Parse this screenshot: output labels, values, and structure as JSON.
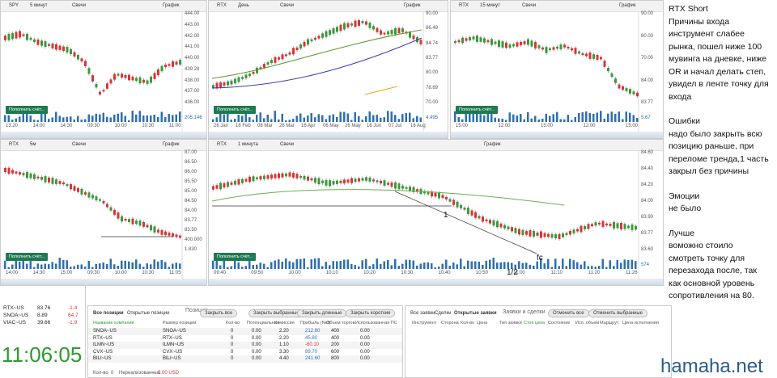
{
  "panels": [
    {
      "symbol": "SPY",
      "interval": "5 минут",
      "style": "Свечи",
      "view": "График",
      "price_labels": [
        "444.00",
        "443.00",
        "442.00",
        "441.00",
        "440.00",
        "439.28",
        "438.00",
        "437.00",
        "436.00"
      ],
      "time_labels": [
        "13:20",
        "14:00",
        "14:30",
        "09:30",
        "10:00",
        "10:30",
        "11:00"
      ],
      "button": "Пополнить счёт...",
      "volume_label": "205.146"
    },
    {
      "symbol": "RTX",
      "interval": "День",
      "style": "Свечи",
      "view": "График",
      "price_labels": [
        "90.00",
        "86.49",
        "84.74",
        "83.77",
        "80.00",
        "78.69",
        "70.00"
      ],
      "time_labels": [
        "26 Jan",
        "16 Feb",
        "08 Mar",
        "26 Mar",
        "16 Apr",
        "06 May",
        "26 May",
        "16 Jun",
        "07 Jul",
        "16 Aug"
      ],
      "button": "Пополнить счёт...",
      "volume_label": "4.495"
    },
    {
      "symbol": "RTX",
      "interval": "15 минут",
      "style": "Свечи",
      "view": "График",
      "price_labels": [
        "90.00",
        "80.00",
        "70.00",
        "84.00",
        "83.77"
      ],
      "time_labels": [
        "15:00",
        "12:00",
        "15:00",
        "12:00",
        "15:00"
      ],
      "button": "Пополнить счёт...",
      "volume_label": "5.67"
    },
    {
      "symbol": "RTX",
      "interval": "5м",
      "style": "Свечи",
      "view": "График",
      "price_labels": [
        "87.00",
        "86.50",
        "86.00",
        "85.50",
        "85.00",
        "84.50",
        "84.00",
        "83.77",
        "83.50",
        "400.000",
        "1.830"
      ],
      "time_labels": [
        "14:00",
        "14:30",
        "15:00",
        "09:30",
        "10:00",
        "10:30",
        "11:05"
      ],
      "button": "Пополнить счёт...",
      "volume_label": ""
    },
    {
      "symbol": "RTX",
      "interval": "1 минута",
      "style": "Свечи",
      "view": "График",
      "price_labels": [
        "84.60",
        "84.40",
        "84.20",
        "84.00",
        "83.90",
        "83.77",
        "83.60"
      ],
      "time_labels": [
        "09:40",
        "09:50",
        "10:00",
        "10:10",
        "10:20",
        "10:30",
        "10:40",
        "10:50",
        "11:00",
        "11:10",
        "11:20",
        "11:26"
      ],
      "button": "Пополнить счёт...",
      "volume_label": "574",
      "annotations": [
        "1",
        "1/2",
        "fc"
      ]
    }
  ],
  "notes": {
    "title": "RTX Short",
    "paragraphs": [
      [
        "Причины входа",
        "инструмент слабее",
        "рынка, пошел ниже 100",
        "мувинга на дневке, ниже",
        "OR и начал делать степ,",
        "увидел в ленте точку для",
        "входа"
      ],
      [
        "Ошибки",
        "надо было закрыть всю",
        "позицию раньше, при",
        "переломе тренда,1 часть",
        "закрыл без причины"
      ],
      [
        "Эмоции",
        "не было"
      ],
      [
        "Лучше",
        "воможно стоило",
        "смотреть точку для",
        "перезахода после, так",
        "как основной уровень",
        "сопротивления на 80."
      ]
    ]
  },
  "watchlist": [
    [
      "RTX~US",
      "83.76",
      "-1.4"
    ],
    [
      "SNOA~US",
      "8.89",
      "64.7"
    ],
    [
      "VIAC~US",
      "39.66",
      "-1.9"
    ]
  ],
  "clock": "11:06:05",
  "positions": {
    "tabs": [
      "Все позиции",
      "Открытые позиции"
    ],
    "title": "Позиции",
    "buttons": [
      "Закрыть все",
      "Закрыть выбранные",
      "Закрыть длинные",
      "Закрыть короткие"
    ],
    "headers": [
      "Название компании",
      "Размер позиции",
      "Кол-во",
      "Потенциальная",
      "Комиссия",
      "Прибыль (Net)",
      "Объем торгов",
      "Использованная ПС"
    ],
    "rows": [
      [
        "SNOA~US",
        "SNOA~US",
        "0",
        "0.00",
        "2.20",
        "212.80",
        "400",
        "0.00"
      ],
      [
        "RTX~US",
        "RTX~US",
        "0",
        "0.00",
        "2.20",
        "45.80",
        "400",
        "0.00"
      ],
      [
        "ILMN~US",
        "ILMN~US",
        "0",
        "0.00",
        "1.10",
        "-60.10",
        "200",
        "0.00"
      ],
      [
        "CVX~US",
        "CVX~US",
        "0",
        "0.00",
        "3.30",
        "89.70",
        "600",
        "0.00"
      ],
      [
        "BILI~US",
        "BILI~US",
        "0",
        "0.00",
        "4.40",
        "241.60",
        "800",
        "0.00"
      ]
    ],
    "footer": [
      "Кол-во",
      "0",
      "Нереализованный",
      "0.00 USD"
    ]
  },
  "orders": {
    "tabs": [
      "Все заявки",
      "Сделки",
      "Открытые заявки"
    ],
    "title": "Заявки и сделки",
    "buttons": [
      "Отменить все",
      "Отменить выбранные"
    ],
    "headers": [
      "Инструмент",
      "Сторона",
      "Кол-во",
      "Цена",
      "Тип заявки",
      "Стоп цена",
      "Состояние",
      "Исп. объем",
      "Маршрут",
      "Цена исполнения"
    ]
  },
  "watermark": "hamaha.net"
}
